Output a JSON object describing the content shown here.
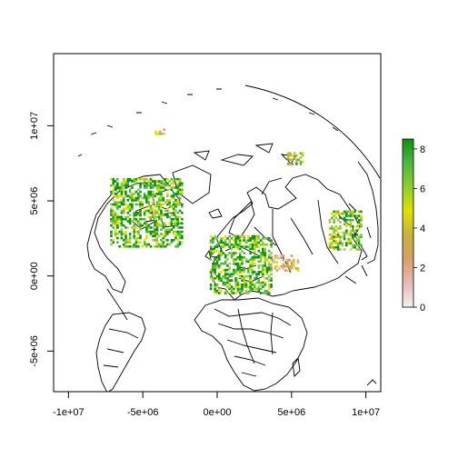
{
  "chart_data": {
    "type": "heatmap",
    "projection": "azimuthal (polar-centred) world map",
    "x_ticks": [
      {
        "value": -10000000,
        "label": "-1e+07"
      },
      {
        "value": -5000000,
        "label": "-5e+06"
      },
      {
        "value": 0,
        "label": "0e+00"
      },
      {
        "value": 5000000,
        "label": "5e+06"
      },
      {
        "value": 10000000,
        "label": "1e+07"
      }
    ],
    "y_ticks": [
      {
        "value": -5000000,
        "label": "-5e+06"
      },
      {
        "value": 0,
        "label": "0e+00"
      },
      {
        "value": 5000000,
        "label": "5e+06"
      },
      {
        "value": 10000000,
        "label": "1e+07"
      }
    ],
    "xlim": [
      -11000000,
      11000000
    ],
    "ylim": [
      -7700000,
      14800000
    ],
    "legend": {
      "position": "right",
      "range": [
        0,
        8.5
      ],
      "ticks": [
        {
          "value": 0,
          "label": "0"
        },
        {
          "value": 2,
          "label": "2"
        },
        {
          "value": 4,
          "label": "4"
        },
        {
          "value": 6,
          "label": "6"
        },
        {
          "value": 8,
          "label": "8"
        }
      ],
      "colors": [
        "#f2f2f2",
        "#e8b8b8",
        "#d9a066",
        "#c8b040",
        "#e0e000",
        "#8fce30",
        "#4cb840",
        "#109010"
      ]
    },
    "clusters": [
      {
        "region": "eastern North America",
        "x": [
          -7200000,
          -2300000
        ],
        "y": [
          1900000,
          6500000
        ],
        "level": 6.5
      },
      {
        "region": "Europe",
        "x": [
          -500000,
          3600000
        ],
        "y": [
          -1200000,
          2700000
        ],
        "level": 6.8
      },
      {
        "region": "East Asia / Japan",
        "x": [
          7500000,
          9700000
        ],
        "y": [
          1700000,
          4300000
        ],
        "level": 6.0
      },
      {
        "region": "north-east Siberia",
        "x": [
          4700000,
          5700000
        ],
        "y": [
          7400000,
          8200000
        ],
        "level": 5.2
      },
      {
        "region": "Alaska",
        "x": [
          -4200000,
          -3500000
        ],
        "y": [
          9400000,
          9700000
        ],
        "level": 2.8
      },
      {
        "region": "western Siberia",
        "x": [
          3400000,
          5500000
        ],
        "y": [
          300000,
          1400000
        ],
        "level": 2.8
      }
    ]
  }
}
